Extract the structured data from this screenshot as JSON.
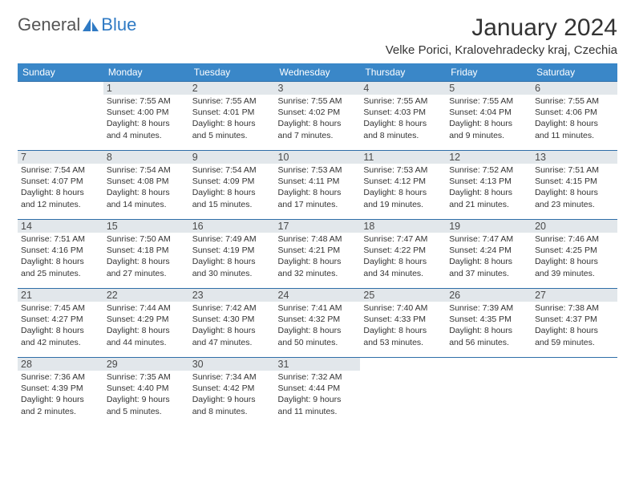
{
  "brand": {
    "part1": "General",
    "part2": "Blue"
  },
  "title": "January 2024",
  "location": "Velke Porici, Kralovehradecky kraj, Czechia",
  "colors": {
    "header_bg": "#3a87c8",
    "header_text": "#ffffff",
    "daynum_bg": "#e2e7eb",
    "rule": "#2f6ea8",
    "text": "#333333",
    "brand_blue": "#2f7ac4"
  },
  "day_names": [
    "Sunday",
    "Monday",
    "Tuesday",
    "Wednesday",
    "Thursday",
    "Friday",
    "Saturday"
  ],
  "weeks": [
    [
      null,
      {
        "n": "1",
        "sr": "Sunrise: 7:55 AM",
        "ss": "Sunset: 4:00 PM",
        "d1": "Daylight: 8 hours",
        "d2": "and 4 minutes."
      },
      {
        "n": "2",
        "sr": "Sunrise: 7:55 AM",
        "ss": "Sunset: 4:01 PM",
        "d1": "Daylight: 8 hours",
        "d2": "and 5 minutes."
      },
      {
        "n": "3",
        "sr": "Sunrise: 7:55 AM",
        "ss": "Sunset: 4:02 PM",
        "d1": "Daylight: 8 hours",
        "d2": "and 7 minutes."
      },
      {
        "n": "4",
        "sr": "Sunrise: 7:55 AM",
        "ss": "Sunset: 4:03 PM",
        "d1": "Daylight: 8 hours",
        "d2": "and 8 minutes."
      },
      {
        "n": "5",
        "sr": "Sunrise: 7:55 AM",
        "ss": "Sunset: 4:04 PM",
        "d1": "Daylight: 8 hours",
        "d2": "and 9 minutes."
      },
      {
        "n": "6",
        "sr": "Sunrise: 7:55 AM",
        "ss": "Sunset: 4:06 PM",
        "d1": "Daylight: 8 hours",
        "d2": "and 11 minutes."
      }
    ],
    [
      {
        "n": "7",
        "sr": "Sunrise: 7:54 AM",
        "ss": "Sunset: 4:07 PM",
        "d1": "Daylight: 8 hours",
        "d2": "and 12 minutes."
      },
      {
        "n": "8",
        "sr": "Sunrise: 7:54 AM",
        "ss": "Sunset: 4:08 PM",
        "d1": "Daylight: 8 hours",
        "d2": "and 14 minutes."
      },
      {
        "n": "9",
        "sr": "Sunrise: 7:54 AM",
        "ss": "Sunset: 4:09 PM",
        "d1": "Daylight: 8 hours",
        "d2": "and 15 minutes."
      },
      {
        "n": "10",
        "sr": "Sunrise: 7:53 AM",
        "ss": "Sunset: 4:11 PM",
        "d1": "Daylight: 8 hours",
        "d2": "and 17 minutes."
      },
      {
        "n": "11",
        "sr": "Sunrise: 7:53 AM",
        "ss": "Sunset: 4:12 PM",
        "d1": "Daylight: 8 hours",
        "d2": "and 19 minutes."
      },
      {
        "n": "12",
        "sr": "Sunrise: 7:52 AM",
        "ss": "Sunset: 4:13 PM",
        "d1": "Daylight: 8 hours",
        "d2": "and 21 minutes."
      },
      {
        "n": "13",
        "sr": "Sunrise: 7:51 AM",
        "ss": "Sunset: 4:15 PM",
        "d1": "Daylight: 8 hours",
        "d2": "and 23 minutes."
      }
    ],
    [
      {
        "n": "14",
        "sr": "Sunrise: 7:51 AM",
        "ss": "Sunset: 4:16 PM",
        "d1": "Daylight: 8 hours",
        "d2": "and 25 minutes."
      },
      {
        "n": "15",
        "sr": "Sunrise: 7:50 AM",
        "ss": "Sunset: 4:18 PM",
        "d1": "Daylight: 8 hours",
        "d2": "and 27 minutes."
      },
      {
        "n": "16",
        "sr": "Sunrise: 7:49 AM",
        "ss": "Sunset: 4:19 PM",
        "d1": "Daylight: 8 hours",
        "d2": "and 30 minutes."
      },
      {
        "n": "17",
        "sr": "Sunrise: 7:48 AM",
        "ss": "Sunset: 4:21 PM",
        "d1": "Daylight: 8 hours",
        "d2": "and 32 minutes."
      },
      {
        "n": "18",
        "sr": "Sunrise: 7:47 AM",
        "ss": "Sunset: 4:22 PM",
        "d1": "Daylight: 8 hours",
        "d2": "and 34 minutes."
      },
      {
        "n": "19",
        "sr": "Sunrise: 7:47 AM",
        "ss": "Sunset: 4:24 PM",
        "d1": "Daylight: 8 hours",
        "d2": "and 37 minutes."
      },
      {
        "n": "20",
        "sr": "Sunrise: 7:46 AM",
        "ss": "Sunset: 4:25 PM",
        "d1": "Daylight: 8 hours",
        "d2": "and 39 minutes."
      }
    ],
    [
      {
        "n": "21",
        "sr": "Sunrise: 7:45 AM",
        "ss": "Sunset: 4:27 PM",
        "d1": "Daylight: 8 hours",
        "d2": "and 42 minutes."
      },
      {
        "n": "22",
        "sr": "Sunrise: 7:44 AM",
        "ss": "Sunset: 4:29 PM",
        "d1": "Daylight: 8 hours",
        "d2": "and 44 minutes."
      },
      {
        "n": "23",
        "sr": "Sunrise: 7:42 AM",
        "ss": "Sunset: 4:30 PM",
        "d1": "Daylight: 8 hours",
        "d2": "and 47 minutes."
      },
      {
        "n": "24",
        "sr": "Sunrise: 7:41 AM",
        "ss": "Sunset: 4:32 PM",
        "d1": "Daylight: 8 hours",
        "d2": "and 50 minutes."
      },
      {
        "n": "25",
        "sr": "Sunrise: 7:40 AM",
        "ss": "Sunset: 4:33 PM",
        "d1": "Daylight: 8 hours",
        "d2": "and 53 minutes."
      },
      {
        "n": "26",
        "sr": "Sunrise: 7:39 AM",
        "ss": "Sunset: 4:35 PM",
        "d1": "Daylight: 8 hours",
        "d2": "and 56 minutes."
      },
      {
        "n": "27",
        "sr": "Sunrise: 7:38 AM",
        "ss": "Sunset: 4:37 PM",
        "d1": "Daylight: 8 hours",
        "d2": "and 59 minutes."
      }
    ],
    [
      {
        "n": "28",
        "sr": "Sunrise: 7:36 AM",
        "ss": "Sunset: 4:39 PM",
        "d1": "Daylight: 9 hours",
        "d2": "and 2 minutes."
      },
      {
        "n": "29",
        "sr": "Sunrise: 7:35 AM",
        "ss": "Sunset: 4:40 PM",
        "d1": "Daylight: 9 hours",
        "d2": "and 5 minutes."
      },
      {
        "n": "30",
        "sr": "Sunrise: 7:34 AM",
        "ss": "Sunset: 4:42 PM",
        "d1": "Daylight: 9 hours",
        "d2": "and 8 minutes."
      },
      {
        "n": "31",
        "sr": "Sunrise: 7:32 AM",
        "ss": "Sunset: 4:44 PM",
        "d1": "Daylight: 9 hours",
        "d2": "and 11 minutes."
      },
      null,
      null,
      null
    ]
  ]
}
